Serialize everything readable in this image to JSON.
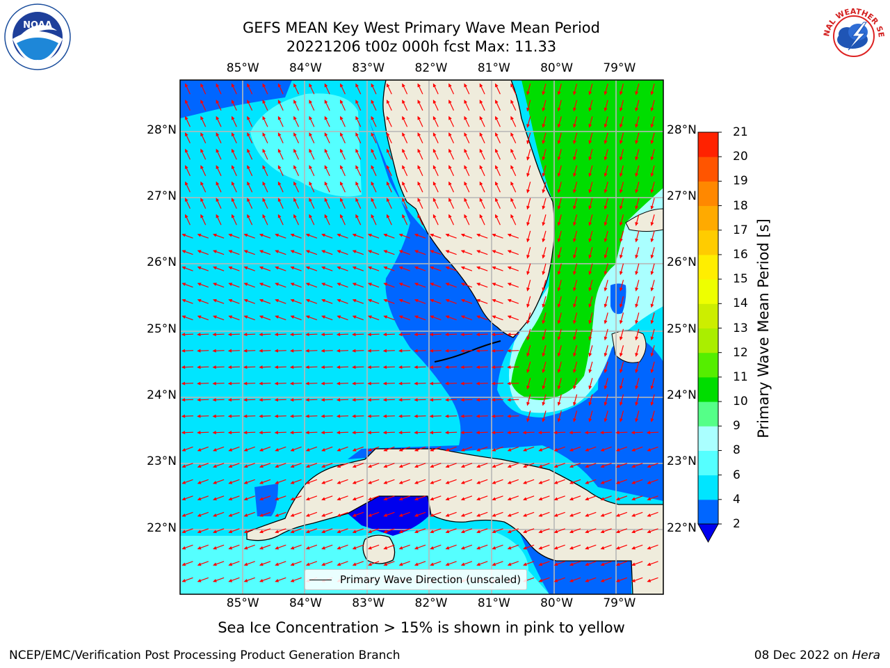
{
  "title": {
    "line1": "GEFS MEAN Key West Primary Wave Mean Period",
    "line2": "20221206 t00z 000h fcst   Max: 11.33"
  },
  "logos": {
    "left": "NOAA",
    "right": "NATIONAL WEATHER SERVICE"
  },
  "map": {
    "extent": {
      "lon_min": -86.0,
      "lon_max": -78.3,
      "lat_min": 21.0,
      "lat_max": 28.75
    },
    "lon_ticks": [
      "85°W",
      "84°W",
      "83°W",
      "82°W",
      "81°W",
      "80°W",
      "79°W"
    ],
    "lat_ticks": [
      "28°N",
      "27°N",
      "26°N",
      "25°N",
      "24°N",
      "23°N",
      "22°N"
    ],
    "land_color": "#efecdc",
    "arrow_color": "#ff0000",
    "grid": true
  },
  "legend": {
    "entry": "Primary Wave Direction (unscaled)"
  },
  "colorbar": {
    "label": "Primary Wave Mean Period [s]",
    "ticks": [
      "2",
      "4",
      "6",
      "8",
      "9",
      "10",
      "11",
      "12",
      "13",
      "14",
      "15",
      "16",
      "17",
      "18",
      "19",
      "20",
      "21"
    ],
    "levels": [
      2,
      4,
      6,
      8,
      9,
      10,
      11,
      12,
      13,
      14,
      15,
      16,
      17,
      18,
      19,
      20,
      21
    ],
    "colors": [
      "#0066ff",
      "#00e5ff",
      "#55ffff",
      "#aaffff",
      "#55ff88",
      "#00dd00",
      "#55ee00",
      "#aaee00",
      "#ccee00",
      "#eeff00",
      "#ffee00",
      "#ffcc00",
      "#ffaa00",
      "#ff8800",
      "#ff5500",
      "#ff2200"
    ],
    "under_color": "#0000ee"
  },
  "footnote": "Sea Ice Concentration > 15% is shown in pink to yellow",
  "credit": "NCEP/EMC/Verification Post Processing Product Generation Branch",
  "date_stamp": {
    "date": "08 Dec 2022",
    "on": "on",
    "host": "Hera"
  }
}
